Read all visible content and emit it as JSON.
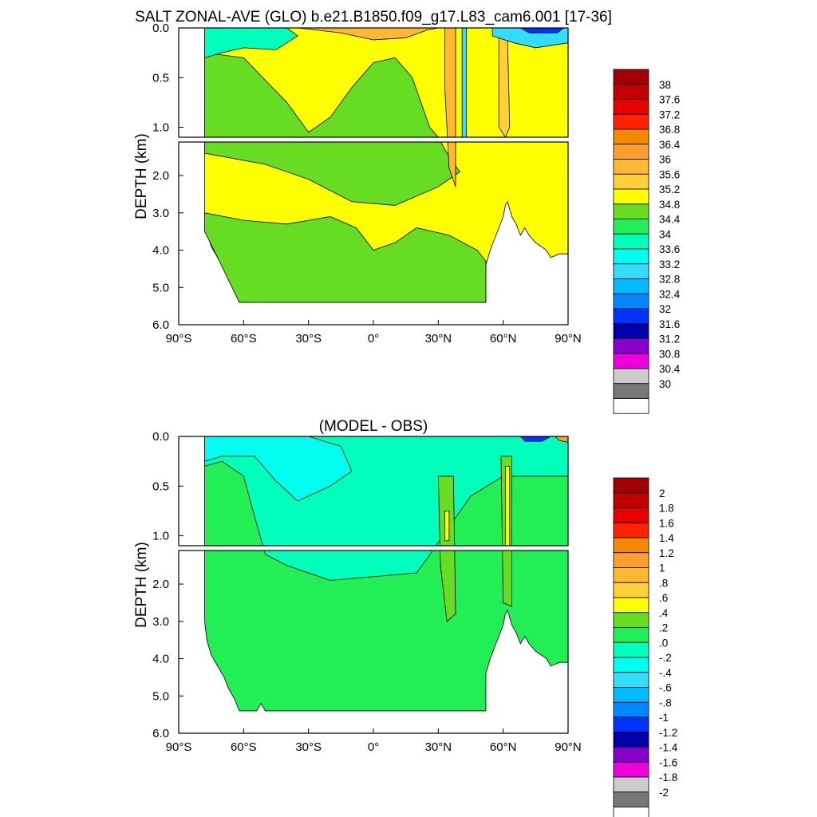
{
  "figure": {
    "title": "SALT ZONAL-AVE (GLO) b.e21.B1850.f09_g17.L83_cam6.001 [17-36]",
    "subtitle": "(MODEL - OBS)"
  },
  "chart_data": [
    {
      "type": "heatmap",
      "name": "model",
      "title": "SALT ZONAL-AVE (GLO) b.e21.B1850.f09_g17.L83_cam6.001 [17-36]",
      "ylabel": "DEPTH (km)",
      "xlim": [
        -90,
        90
      ],
      "ylim_upper": [
        0,
        1.1
      ],
      "ylim_lower": [
        1.1,
        6.0
      ],
      "y_reversed": true,
      "x_ticks": [
        "90°S",
        "60°S",
        "30°S",
        "0°",
        "30°N",
        "60°N",
        "90°N"
      ],
      "y_ticks_upper": [
        "0.0",
        "0.5",
        "1.0"
      ],
      "y_ticks_lower": [
        "2.0",
        "3.0",
        "4.0",
        "5.0",
        "6.0"
      ],
      "colorbar_labels": [
        "38",
        "37.6",
        "37.2",
        "36.8",
        "36.4",
        "36",
        "35.6",
        "35.2",
        "34.8",
        "34.4",
        "34",
        "33.6",
        "33.2",
        "32.8",
        "32.4",
        "32",
        "31.6",
        "31.2",
        "30.8",
        "30.4",
        "30"
      ],
      "colorbar_colors": [
        "#a30000",
        "#c00000",
        "#e60000",
        "#ff2200",
        "#f28a00",
        "#ff9f30",
        "#ffb833",
        "#ffd03a",
        "#ffff00",
        "#66dd22",
        "#22ee55",
        "#00ffbb",
        "#00ffee",
        "#33ddff",
        "#00bbff",
        "#0088ff",
        "#0033ff",
        "#0000aa",
        "#8800cc",
        "#ee00dd",
        "#cccccc",
        "#777777",
        "#ffffff"
      ],
      "dominant_regions": [
        {
          "x_range": [
            -78,
            90
          ],
          "y_range": [
            1.1,
            3.0
          ],
          "value": "34.8 - 35.2"
        },
        {
          "x_range": [
            -78,
            52
          ],
          "y_range": [
            3.0,
            5.4
          ],
          "value": "34.4 - 34.8"
        },
        {
          "x_range": [
            -60,
            -10
          ],
          "y_range": [
            0.2,
            1.1
          ],
          "value": "34.4 - 34.8"
        },
        {
          "x_range": [
            -78,
            -40
          ],
          "y_range": [
            0,
            0.3
          ],
          "value": "33.6 - 34.4"
        },
        {
          "x_range": [
            -20,
            30
          ],
          "y_range": [
            0,
            0.2
          ],
          "value": "35.6 - 36.0"
        },
        {
          "x_range": [
            60,
            90
          ],
          "y_range": [
            0,
            0.1
          ],
          "value": "30 - 33"
        }
      ]
    },
    {
      "type": "heatmap",
      "name": "model_minus_obs",
      "title": "(MODEL - OBS)",
      "ylabel": "DEPTH (km)",
      "xlim": [
        -90,
        90
      ],
      "ylim_upper": [
        0,
        1.1
      ],
      "ylim_lower": [
        1.1,
        6.0
      ],
      "y_reversed": true,
      "x_ticks": [
        "90°S",
        "60°S",
        "30°S",
        "0°",
        "30°N",
        "60°N",
        "90°N"
      ],
      "y_ticks_upper": [
        "0.0",
        "0.5",
        "1.0"
      ],
      "y_ticks_lower": [
        "2.0",
        "3.0",
        "4.0",
        "5.0",
        "6.0"
      ],
      "colorbar_labels": [
        "2",
        "1.8",
        "1.6",
        "1.4",
        "1.2",
        "1",
        ".8",
        ".6",
        ".4",
        ".2",
        ".0",
        "-.2",
        "-.4",
        "-.6",
        "-.8",
        "-1",
        "-1.2",
        "-1.4",
        "-1.6",
        "-1.8",
        "-2"
      ],
      "colorbar_colors": [
        "#a30000",
        "#c00000",
        "#e60000",
        "#ff2200",
        "#f28a00",
        "#ff9f30",
        "#ffb833",
        "#ffd03a",
        "#ffff00",
        "#66dd22",
        "#22ee55",
        "#00ffbb",
        "#00ffee",
        "#33ddff",
        "#00bbff",
        "#0088ff",
        "#0033ff",
        "#0000aa",
        "#8800cc",
        "#ee00dd",
        "#cccccc",
        "#777777",
        "#ffffff"
      ],
      "dominant_regions": [
        {
          "x_range": [
            -78,
            90
          ],
          "y_range": [
            1.1,
            5.4
          ],
          "value": "0.0 - 0.2"
        },
        {
          "x_range": [
            -40,
            40
          ],
          "y_range": [
            0.3,
            1.1
          ],
          "value": "-0.2 - 0.0"
        },
        {
          "x_range": [
            -60,
            -10
          ],
          "y_range": [
            0,
            0.5
          ],
          "value": "-0.4 - -0.2"
        },
        {
          "x_range": [
            31,
            36
          ],
          "y_range": [
            0.5,
            3.0
          ],
          "value": "0.2 - 0.6"
        },
        {
          "x_range": [
            60,
            64
          ],
          "y_range": [
            0.2,
            2.5
          ],
          "value": "0.2 - 0.6"
        }
      ]
    }
  ]
}
